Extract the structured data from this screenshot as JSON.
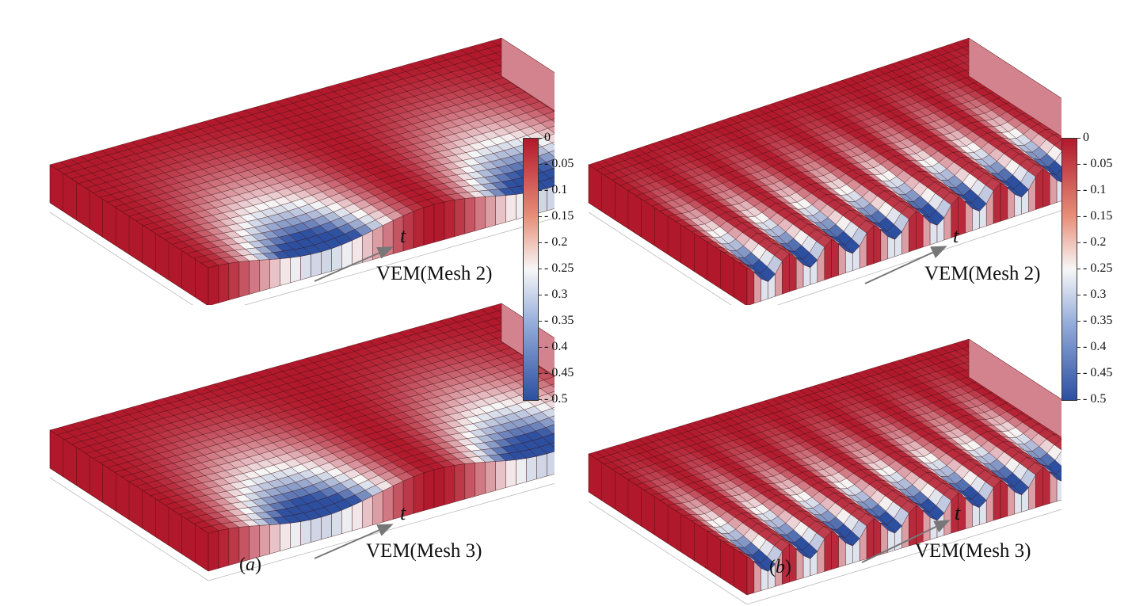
{
  "colorbar": {
    "ticks": [
      "0",
      "- 0.05",
      "- 0.1",
      "- 0.15",
      "- 0.2",
      "- 0.25",
      "- 0.3",
      "- 0.35",
      "- 0.4",
      "- 0.45",
      "- 0.5"
    ],
    "range": [
      -0.5,
      0
    ],
    "colors": {
      "max": "#b2182b",
      "mid": "#f7f7f7",
      "min": "#2c4fa0"
    }
  },
  "panels": [
    {
      "title": "VEM(Mesh 2)",
      "arrow_label": "t",
      "waves": 2
    },
    {
      "title": "VEM(Mesh 3)",
      "arrow_label": "t",
      "waves": 2
    },
    {
      "title": "VEM(Mesh 2)",
      "arrow_label": "t",
      "waves": 9
    },
    {
      "title": "VEM(Mesh 3)",
      "arrow_label": "t",
      "waves": 9
    }
  ],
  "subfigure_labels": {
    "a_letter": "a",
    "b_letter": "b"
  },
  "colors": {
    "red": "#b2182b",
    "blue": "#2c4fa0",
    "mesh": "#3a0c0c"
  }
}
